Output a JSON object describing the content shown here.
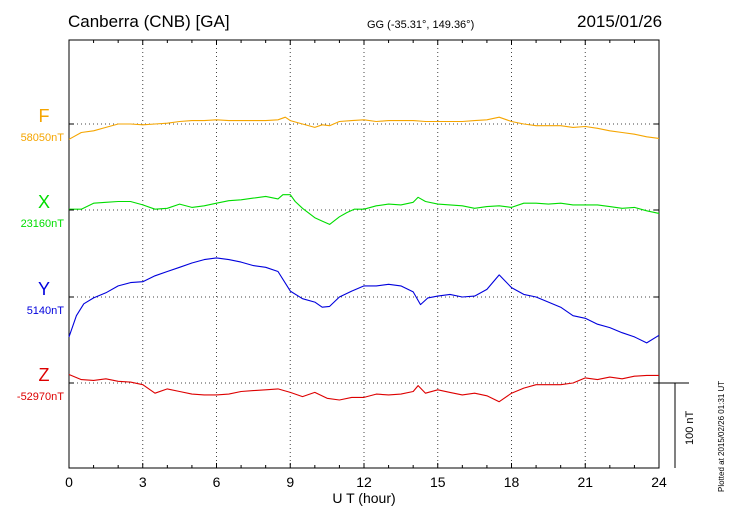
{
  "header": {
    "station": "Canberra (CNB)  [GA]",
    "coords": "GG (-35.31°, 149.36°)",
    "date": "2015/01/26"
  },
  "plotted_note": "Plotted at 2015/02/26 01:31  UT",
  "scale_label": "100 nT",
  "chart_data": {
    "type": "line",
    "xlabel": "U T (hour)",
    "xlim": [
      0,
      24
    ],
    "xticks": [
      0,
      3,
      6,
      9,
      12,
      15,
      18,
      21,
      24
    ],
    "xtick_labels": [
      "0",
      "3",
      "6",
      "9",
      "12",
      "15",
      "18",
      "21",
      "24"
    ],
    "scale_nT": 100,
    "grid": true,
    "series": [
      {
        "name": "F",
        "baseline_label": "58050nT",
        "baseline": 58050,
        "color": "#f5a500",
        "x": [
          0,
          0.5,
          1,
          1.5,
          2,
          2.5,
          3,
          3.5,
          4,
          4.5,
          5,
          5.5,
          6,
          6.5,
          7,
          7.5,
          8,
          8.5,
          8.8,
          9,
          9.5,
          10,
          10.3,
          10.6,
          11,
          11.5,
          12,
          12.5,
          13,
          13.5,
          14,
          14.5,
          15,
          15.5,
          16,
          16.5,
          17,
          17.5,
          18,
          18.5,
          19,
          19.5,
          20,
          20.5,
          21,
          21.5,
          22,
          22.5,
          23,
          23.5,
          24
        ],
        "y": [
          58032,
          58040,
          58042,
          58046,
          58050,
          58050,
          58049,
          58050,
          58051,
          58053,
          58054,
          58054,
          58055,
          58054,
          58054,
          58054,
          58054,
          58055,
          58058,
          58054,
          58050,
          58046,
          58049,
          58048,
          58053,
          58054,
          58055,
          58053,
          58054,
          58054,
          58054,
          58053,
          58053,
          58053,
          58053,
          58054,
          58055,
          58058,
          58053,
          58050,
          58048,
          58048,
          58048,
          58046,
          58047,
          58045,
          58042,
          58040,
          58038,
          58035,
          58033
        ]
      },
      {
        "name": "X",
        "baseline_label": "23160nT",
        "baseline": 23160,
        "color": "#00dd00",
        "x": [
          0,
          0.5,
          1,
          1.5,
          2,
          2.5,
          3,
          3.5,
          4,
          4.5,
          5,
          5.5,
          6,
          6.5,
          7,
          7.5,
          8,
          8.5,
          8.7,
          9,
          9.2,
          9.5,
          10,
          10.3,
          10.6,
          11,
          11.3,
          11.6,
          12,
          12.5,
          13,
          13.5,
          14,
          14.2,
          14.5,
          15,
          15.5,
          16,
          16.5,
          17,
          17.5,
          18,
          18.5,
          19,
          19.5,
          20,
          20.5,
          21,
          21.5,
          22,
          22.5,
          23,
          23.5,
          24
        ],
        "y": [
          23161,
          23161,
          23168,
          23169,
          23170,
          23170,
          23166,
          23161,
          23162,
          23167,
          23163,
          23165,
          23168,
          23171,
          23172,
          23174,
          23176,
          23173,
          23178,
          23178,
          23170,
          23162,
          23151,
          23147,
          23143,
          23152,
          23157,
          23161,
          23161,
          23165,
          23167,
          23166,
          23169,
          23175,
          23170,
          23167,
          23166,
          23165,
          23162,
          23164,
          23165,
          23163,
          23168,
          23168,
          23167,
          23168,
          23166,
          23166,
          23166,
          23164,
          23162,
          23163,
          23159,
          23156
        ]
      },
      {
        "name": "Y",
        "baseline_label": "5140nT",
        "baseline": 5140,
        "color": "#0000dd",
        "x": [
          0,
          0.3,
          0.6,
          1,
          1.5,
          2,
          2.5,
          3,
          3.5,
          4,
          4.5,
          5,
          5.5,
          6,
          6.5,
          7,
          7.5,
          8,
          8.5,
          9,
          9.5,
          10,
          10.3,
          10.6,
          11,
          11.5,
          12,
          12.5,
          13,
          13.5,
          14,
          14.3,
          14.6,
          15,
          15.5,
          16,
          16.5,
          17,
          17.5,
          18,
          18.5,
          19,
          19.5,
          20,
          20.5,
          21,
          21.5,
          22,
          22.5,
          23,
          23.5,
          24
        ],
        "y": [
          5093,
          5118,
          5132,
          5139,
          5145,
          5153,
          5157,
          5158,
          5165,
          5170,
          5175,
          5180,
          5184,
          5186,
          5184,
          5181,
          5177,
          5175,
          5170,
          5147,
          5138,
          5134,
          5128,
          5129,
          5140,
          5147,
          5153,
          5153,
          5155,
          5153,
          5146,
          5131,
          5139,
          5141,
          5143,
          5140,
          5141,
          5149,
          5166,
          5151,
          5143,
          5140,
          5134,
          5128,
          5118,
          5115,
          5108,
          5104,
          5098,
          5093,
          5086,
          5095
        ]
      },
      {
        "name": "Z",
        "baseline_label": "-52970nT",
        "baseline": -52970,
        "color": "#dd0000",
        "x": [
          0,
          0.5,
          1,
          1.5,
          2,
          2.5,
          3,
          3.5,
          4,
          4.5,
          5,
          5.5,
          6,
          6.5,
          7,
          7.5,
          8,
          8.5,
          9,
          9.5,
          10,
          10.5,
          11,
          11.5,
          12,
          12.5,
          13,
          13.5,
          14,
          14.2,
          14.5,
          15,
          15.5,
          16,
          16.5,
          17,
          17.5,
          18,
          18.5,
          19,
          19.5,
          20,
          20.5,
          21,
          21.5,
          22,
          22.5,
          23,
          23.5,
          24
        ],
        "y": [
          -52960,
          -52966,
          -52967,
          -52965,
          -52968,
          -52969,
          -52972,
          -52982,
          -52977,
          -52980,
          -52983,
          -52984,
          -52984,
          -52983,
          -52980,
          -52979,
          -52978,
          -52977,
          -52981,
          -52986,
          -52981,
          -52988,
          -52990,
          -52987,
          -52987,
          -52983,
          -52984,
          -52983,
          -52980,
          -52973,
          -52982,
          -52978,
          -52981,
          -52984,
          -52982,
          -52985,
          -52992,
          -52982,
          -52976,
          -52972,
          -52972,
          -52972,
          -52970,
          -52964,
          -52966,
          -52963,
          -52965,
          -52962,
          -52961,
          -52961
        ]
      }
    ]
  }
}
